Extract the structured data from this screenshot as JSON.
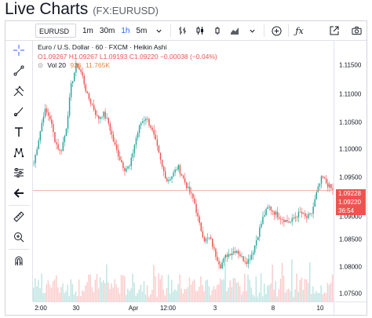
{
  "header": {
    "title": "Live Charts",
    "symbol_paren": "(FX:EURUSD)"
  },
  "toolbar": {
    "symbol": "EURUSD",
    "intervals": [
      "1m",
      "30m",
      "1h",
      "5m"
    ],
    "active_interval": "1h",
    "icons": [
      "chevron-down-icon",
      "bars-icon",
      "candles-icon",
      "hollow-candles-icon",
      "area-icon",
      "chevron-down-icon",
      "add-compare-icon",
      "indicators-fx-icon",
      "open-window-icon",
      "camera-icon"
    ]
  },
  "left_tools": [
    "crosshair-icon",
    "trend-line-icon",
    "pitchfork-icon",
    "brush-icon",
    "text-icon",
    "pattern-icon",
    "forecast-icon",
    "arrow-back-icon",
    "ruler-icon",
    "zoom-in-icon",
    "magnet-icon"
  ],
  "legend": {
    "title": "Euro / U.S. Dollar · 60 · FXCM · Heikin Ashi",
    "ohlc": "O1.09267 H1.09267 L1.09193 C1.09220 −0.00038 (−0.04%)",
    "volume_label": "Vol 20",
    "volume_value": "926",
    "volume_ma": "11.765K"
  },
  "price_axis": {
    "ticks": [
      "1.11500",
      "1.11000",
      "1.10500",
      "1.10000",
      "1.09500",
      "1.09000",
      "1.08500",
      "1.08000",
      "1.07500"
    ],
    "badges": [
      "1.09228",
      "1.09220",
      "36:54"
    ]
  },
  "time_axis": {
    "labels": [
      "2:00",
      "30",
      "Apr",
      "12:00",
      "3",
      "8",
      "10"
    ]
  },
  "colors": {
    "up": "#26a69a",
    "down": "#ef5350",
    "line": "#f0a08a",
    "accent": "#2962ff"
  },
  "chart_data": {
    "type": "candlestick",
    "title": "Euro / U.S. Dollar · 60 · FXCM · Heikin Ashi",
    "ylim": [
      1.0735,
      1.1175
    ],
    "y_ticks": [
      1.075,
      1.08,
      1.085,
      1.09,
      1.095,
      1.1,
      1.105,
      1.11,
      1.115
    ],
    "current_price": 1.0922,
    "x_labels": [
      "2:00",
      "30",
      "Apr",
      "12:00",
      "3",
      "8",
      "10"
    ],
    "close_path": [
      1.0968,
      1.1012,
      1.1058,
      1.1045,
      1.1005,
      1.0985,
      1.1022,
      1.1098,
      1.1135,
      1.1118,
      1.1082,
      1.1065,
      1.1042,
      1.1052,
      1.1035,
      1.1002,
      1.0978,
      1.0958,
      1.0962,
      1.1005,
      1.1035,
      1.1045,
      1.1028,
      1.0998,
      1.0962,
      1.0938,
      1.0948,
      1.0962,
      1.0942,
      1.0922,
      1.0905,
      1.0865,
      1.0838,
      1.0842,
      1.0815,
      1.0795,
      1.0812,
      1.0818,
      1.0822,
      1.0808,
      1.0802,
      1.0818,
      1.0848,
      1.0878,
      1.0895,
      1.0885,
      1.0878,
      1.0872,
      1.0868,
      1.0878,
      1.0885,
      1.0875,
      1.0882,
      1.0918,
      1.0945,
      1.0932,
      1.0922
    ]
  }
}
